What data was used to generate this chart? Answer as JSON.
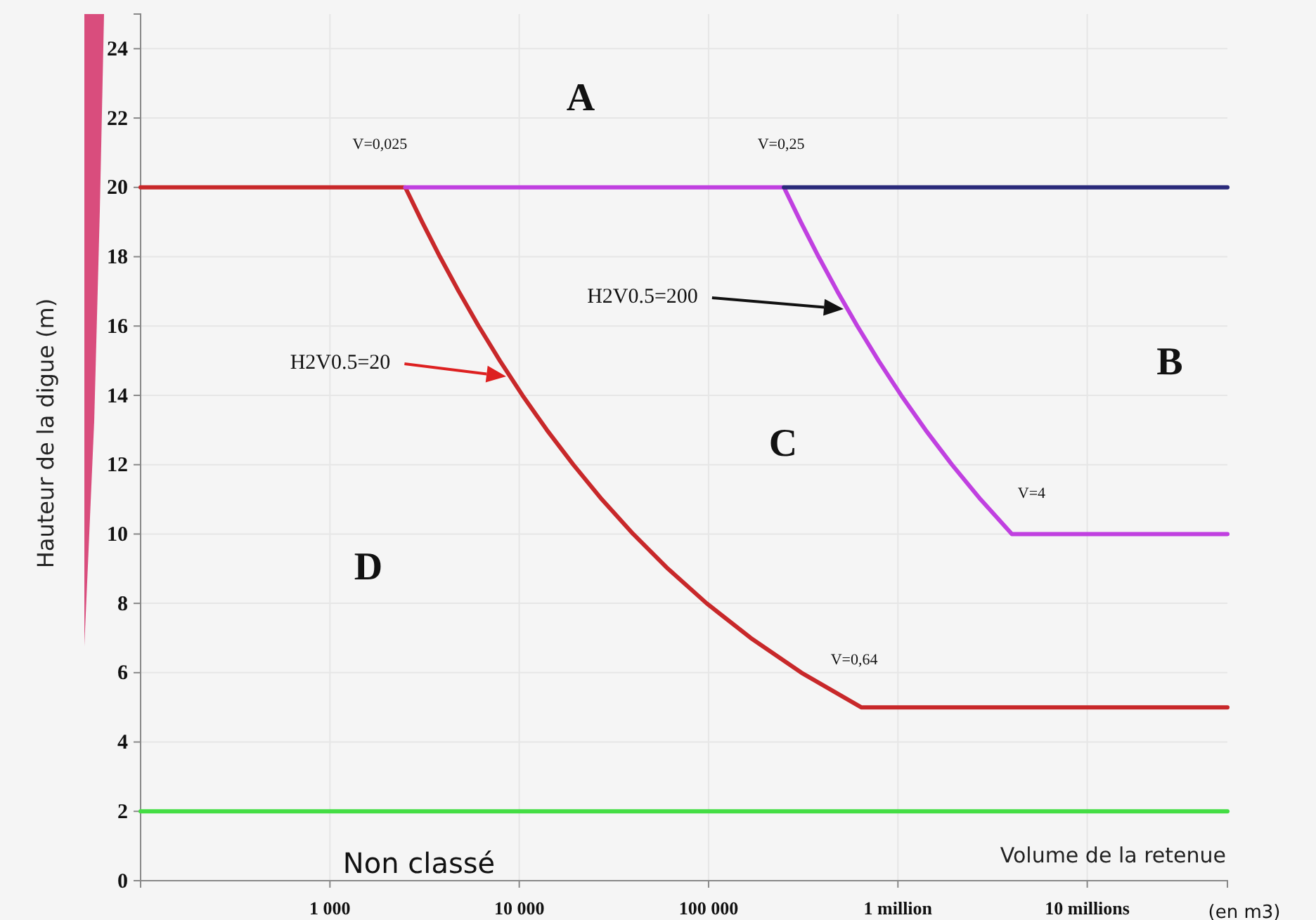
{
  "chart_data": {
    "type": "line",
    "ylabel": "Hauteur de la digue (m)",
    "xlabel": "Volume de la retenue",
    "log": "x",
    "xlim": [
      100,
      55000000
    ],
    "xticks": [
      {
        "value": 1000,
        "label": "1 000"
      },
      {
        "value": 10000,
        "label": "10 000"
      },
      {
        "value": 100000,
        "label": "100 000"
      },
      {
        "value": 1000000,
        "label": "1 million"
      },
      {
        "value": 10000000,
        "label": "10 millions"
      }
    ],
    "ylim": [
      0,
      25
    ],
    "yticks": [
      0,
      2,
      4,
      6,
      8,
      10,
      12,
      14,
      16,
      18,
      20,
      22,
      24
    ],
    "grid": true,
    "series": [
      {
        "color": "#c8282a",
        "x": [
          100,
          2500,
          3070,
          3810,
          4790,
          6100,
          7900,
          10400,
          14000,
          19300,
          27300,
          40000,
          61000,
          97700,
          167000,
          309000,
          640000,
          55000000
        ],
        "values": [
          20,
          20,
          19,
          18,
          17,
          16,
          15,
          14,
          13,
          12,
          11,
          10,
          9,
          8,
          7,
          6,
          5,
          5
        ]
      },
      {
        "color": "#c040e0",
        "x": [
          2500,
          250000,
          306900,
          381000,
          478900,
          610400,
          790100,
          1041000,
          1400500,
          1929000,
          2732000,
          4000000,
          55000000
        ],
        "values": [
          20,
          20,
          19,
          18,
          17,
          16,
          15,
          14,
          13,
          12,
          11,
          10,
          10
        ]
      },
      {
        "color": "#2a2a7a",
        "x": [
          250000,
          55000000
        ],
        "values": [
          20,
          20
        ]
      },
      {
        "color": "#44dd44",
        "x": [
          100,
          55000000
        ],
        "values": [
          2,
          2
        ]
      }
    ],
    "annotations": [
      "A",
      "B",
      "C",
      "D",
      "Non classé",
      "(en m3)",
      {
        "text": "V=0,025",
        "x": 2500,
        "y": 20
      },
      {
        "text": "V=0,25",
        "x": 250000,
        "y": 20
      },
      {
        "text": "V=4",
        "x": 4000000,
        "y": 10
      },
      {
        "text": "V=0,64",
        "x": 640000,
        "y": 5
      },
      "H2V0.5=20",
      "H2V0.5=200"
    ]
  }
}
